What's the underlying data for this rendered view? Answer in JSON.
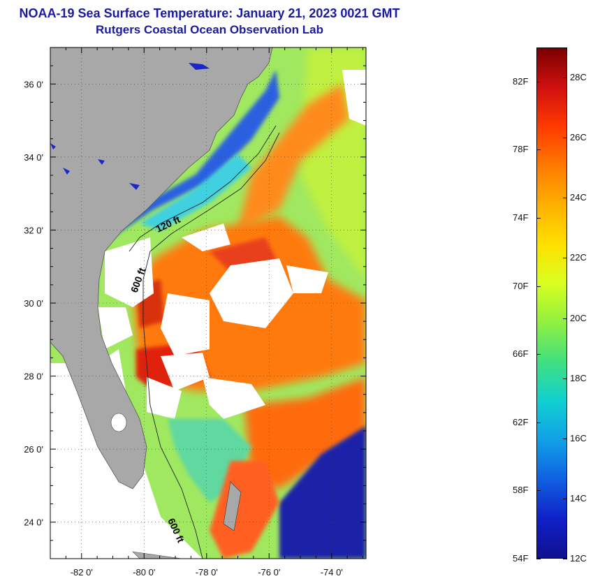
{
  "title": {
    "line1": "NOAA-19 Sea Surface Temperature:  January 21, 2023 0021 GMT",
    "line2": "Rutgers Coastal Ocean Observation Lab"
  },
  "map": {
    "lon_range": [
      -83.0,
      -72.9
    ],
    "lat_range": [
      23.0,
      37.0
    ],
    "lon_ticks": [
      {
        "value": -82,
        "label": "-82 0'"
      },
      {
        "value": -80,
        "label": "-80 0'"
      },
      {
        "value": -78,
        "label": "-78 0'"
      },
      {
        "value": -76,
        "label": "-76 0'"
      },
      {
        "value": -74,
        "label": "-74 0'"
      }
    ],
    "lat_ticks": [
      {
        "value": 36,
        "label": "36 0'"
      },
      {
        "value": 34,
        "label": "34 0'"
      },
      {
        "value": 32,
        "label": "32 0'"
      },
      {
        "value": 30,
        "label": "30 0'"
      },
      {
        "value": 28,
        "label": "28 0'"
      },
      {
        "value": 26,
        "label": "26 0'"
      },
      {
        "value": 24,
        "label": "24 0'"
      }
    ],
    "contour_labels": [
      "120 ft",
      "600 ft",
      "600 ft"
    ],
    "colors": {
      "land": "#a8a8a8",
      "cloud": "#ffffff",
      "warm_core": "#e83a14",
      "orange": "#ff8c1a",
      "green_yellow": "#b8f03a",
      "cyan": "#3ad2e6",
      "deep_blue": "#1018a0"
    }
  },
  "colorbar": {
    "fahrenheit_labels": [
      "82F",
      "78F",
      "74F",
      "70F",
      "66F",
      "62F",
      "58F",
      "54F"
    ],
    "celsius_labels": [
      "28C",
      "26C",
      "24C",
      "22C",
      "20C",
      "18C",
      "16C",
      "14C",
      "12C"
    ],
    "range_f": [
      54,
      84
    ],
    "range_c": [
      12,
      29
    ],
    "gradient_stops": [
      "#7a0000",
      "#d01010",
      "#ff3a00",
      "#ff7a00",
      "#ffb000",
      "#ffe000",
      "#d8ff20",
      "#90f040",
      "#40e080",
      "#10d0d0",
      "#10a0e8",
      "#1060e0",
      "#1020c8",
      "#101090"
    ]
  }
}
